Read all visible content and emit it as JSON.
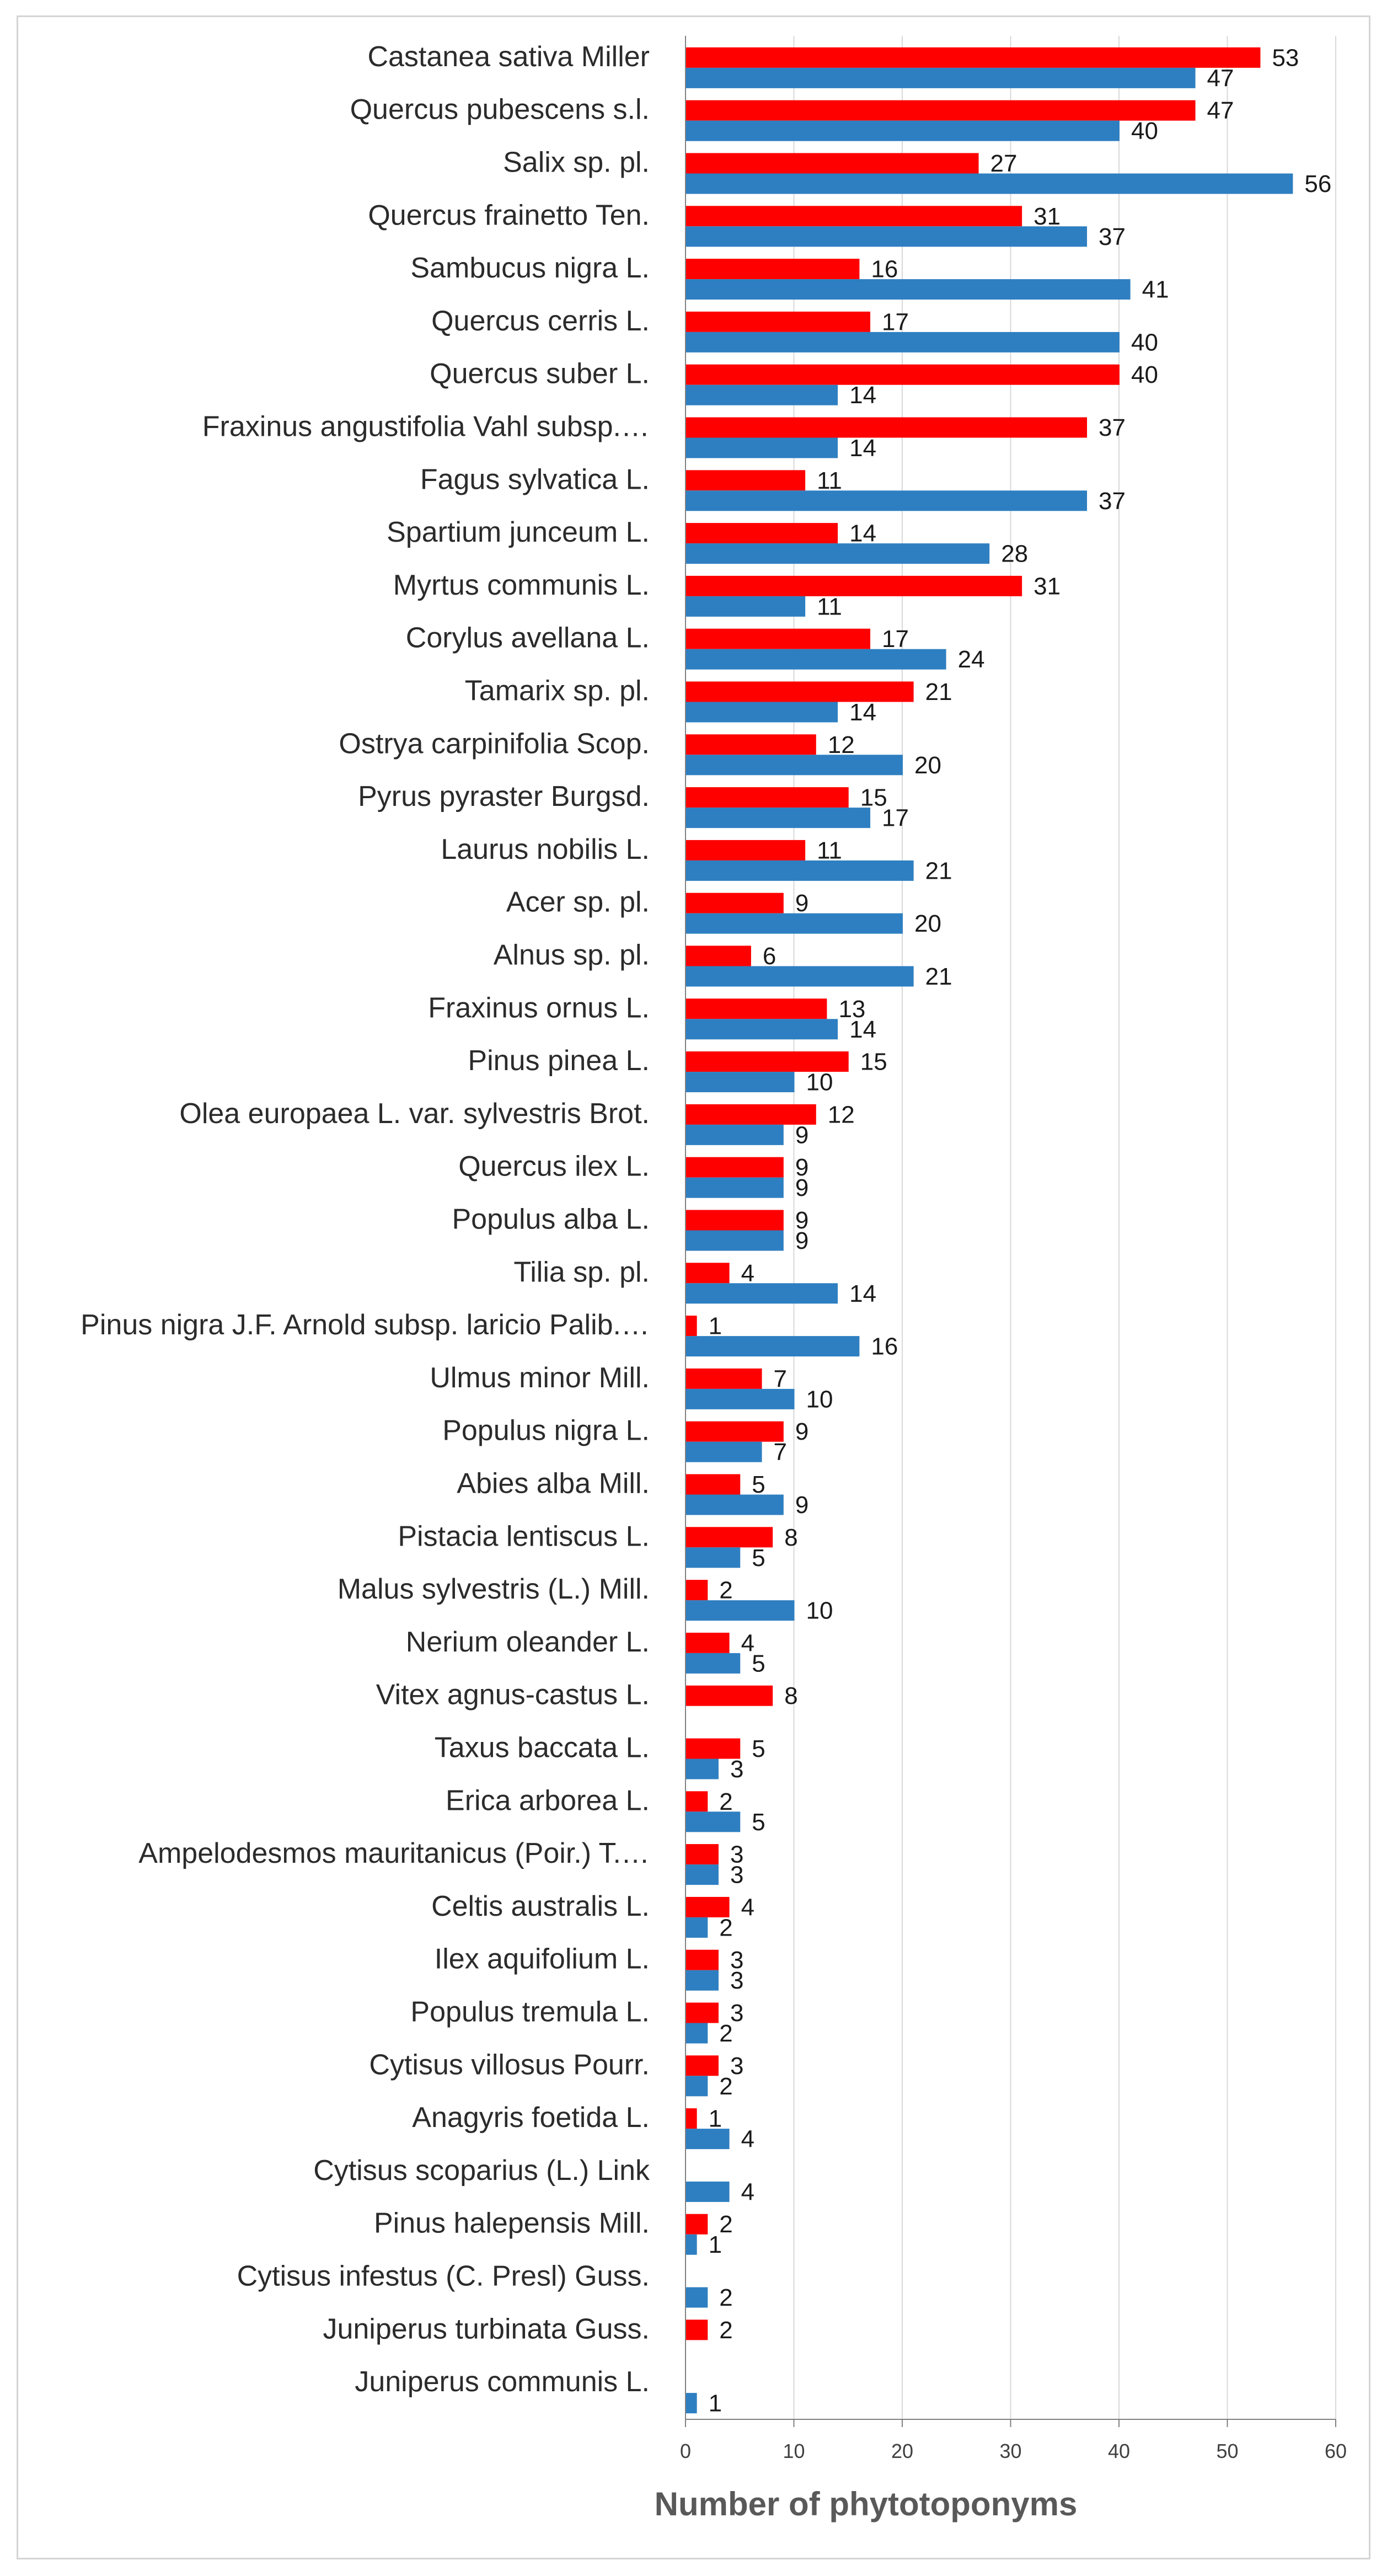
{
  "chart_data": {
    "type": "bar",
    "orientation": "horizontal",
    "title": "",
    "xlabel": "Number of  phytotoponyms",
    "ylabel": "",
    "xlim": [
      0,
      60
    ],
    "x_ticks": [
      "0",
      "10",
      "20",
      "30",
      "40",
      "50",
      "60"
    ],
    "grid": true,
    "legend": "none",
    "categories": [
      "Castanea sativa Miller",
      "Quercus pubescens s.l.",
      "Salix sp. pl.",
      "Quercus frainetto Ten.",
      "Sambucus nigra L.",
      "Quercus cerris L.",
      "Quercus suber L.",
      "Fraxinus angustifolia Vahl subsp.…",
      "Fagus sylvatica L.",
      "Spartium junceum L.",
      "Myrtus communis L.",
      "Corylus avellana L.",
      "Tamarix sp. pl.",
      "Ostrya carpinifolia Scop.",
      "Pyrus pyraster Burgsd.",
      "Laurus nobilis L.",
      "Acer sp. pl.",
      "Alnus sp. pl.",
      "Fraxinus ornus L.",
      "Pinus pinea L.",
      "Olea europaea L. var. sylvestris Brot.",
      "Quercus ilex L.",
      "Populus alba L.",
      "Tilia sp. pl.",
      "Pinus nigra J.F. Arnold subsp. laricio Palib.…",
      "Ulmus minor Mill.",
      "Populus nigra L.",
      "Abies alba Mill.",
      "Pistacia lentiscus L.",
      "Malus sylvestris (L.) Mill.",
      "Nerium oleander L.",
      "Vitex agnus-castus L.",
      "Taxus baccata L.",
      "Erica arborea L.",
      "Ampelodesmos mauritanicus (Poir.) T.…",
      "Celtis australis L.",
      "Ilex aquifolium L.",
      "Populus tremula L.",
      "Cytisus villosus Pourr.",
      "Anagyris foetida L.",
      "Cytisus scoparius (L.) Link",
      "Pinus halepensis Mill.",
      "Cytisus infestus (C. Presl) Guss.",
      "Juniperus turbinata Guss.",
      "Juniperus communis L."
    ],
    "series": [
      {
        "name": "red series",
        "color": "#ff0000",
        "values": [
          53,
          47,
          27,
          31,
          16,
          17,
          40,
          37,
          11,
          14,
          31,
          17,
          21,
          12,
          15,
          11,
          9,
          6,
          13,
          15,
          12,
          9,
          9,
          4,
          1,
          7,
          9,
          5,
          8,
          2,
          4,
          8,
          5,
          2,
          3,
          4,
          3,
          3,
          3,
          1,
          null,
          2,
          null,
          2,
          null
        ]
      },
      {
        "name": "blue series",
        "color": "#2e7fc1",
        "values": [
          47,
          40,
          56,
          37,
          41,
          40,
          14,
          14,
          37,
          28,
          11,
          24,
          14,
          20,
          17,
          21,
          20,
          21,
          14,
          10,
          9,
          9,
          9,
          14,
          16,
          10,
          7,
          9,
          5,
          10,
          5,
          null,
          3,
          5,
          3,
          2,
          3,
          2,
          2,
          4,
          4,
          1,
          2,
          null,
          1
        ]
      }
    ]
  }
}
